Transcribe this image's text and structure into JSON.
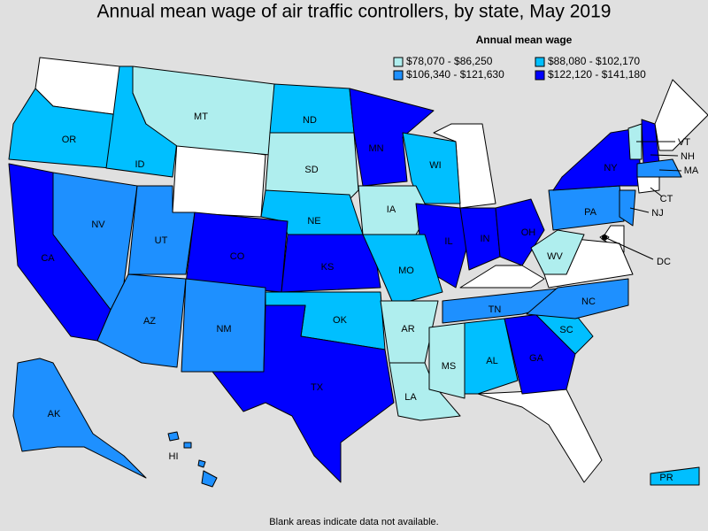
{
  "title": "Annual mean wage of air traffic controllers, by state, May 2019",
  "legend": {
    "title": "Annual mean wage",
    "items": [
      {
        "label": "$78,070 - $86,250",
        "color": "#afeeee"
      },
      {
        "label": "$88,080 - $102,170",
        "color": "#00bfff"
      },
      {
        "label": "$106,340 - $121,630",
        "color": "#1e90ff"
      },
      {
        "label": "$122,120 - $141,180",
        "color": "#0000ff"
      }
    ]
  },
  "states": [
    {
      "label": "OR",
      "class": 1
    },
    {
      "label": "ID",
      "class": 1
    },
    {
      "label": "MT",
      "class": 0
    },
    {
      "label": "ND",
      "class": 1
    },
    {
      "label": "SD",
      "class": 0
    },
    {
      "label": "NE",
      "class": 1
    },
    {
      "label": "MN",
      "class": 3
    },
    {
      "label": "WI",
      "class": 1
    },
    {
      "label": "IA",
      "class": 0
    },
    {
      "label": "IL",
      "class": 3
    },
    {
      "label": "IN",
      "class": 3
    },
    {
      "label": "OH",
      "class": 3
    },
    {
      "label": "PA",
      "class": 2
    },
    {
      "label": "NY",
      "class": 3
    },
    {
      "label": "VT",
      "class": 0
    },
    {
      "label": "NH",
      "class": 3
    },
    {
      "label": "MA",
      "class": 2
    },
    {
      "label": "CT",
      "class": null
    },
    {
      "label": "NJ",
      "class": 2
    },
    {
      "label": "DC",
      "class": null
    },
    {
      "label": "WV",
      "class": 0
    },
    {
      "label": "NV",
      "class": 2
    },
    {
      "label": "CA",
      "class": 3
    },
    {
      "label": "UT",
      "class": 2
    },
    {
      "label": "CO",
      "class": 3
    },
    {
      "label": "KS",
      "class": 3
    },
    {
      "label": "MO",
      "class": 1
    },
    {
      "label": "AZ",
      "class": 2
    },
    {
      "label": "NM",
      "class": 2
    },
    {
      "label": "OK",
      "class": 1
    },
    {
      "label": "TX",
      "class": 3
    },
    {
      "label": "AR",
      "class": 0
    },
    {
      "label": "LA",
      "class": 0
    },
    {
      "label": "MS",
      "class": 0
    },
    {
      "label": "AL",
      "class": 1
    },
    {
      "label": "TN",
      "class": 2
    },
    {
      "label": "GA",
      "class": 3
    },
    {
      "label": "SC",
      "class": 1
    },
    {
      "label": "NC",
      "class": 2
    },
    {
      "label": "AK",
      "class": 2
    },
    {
      "label": "HI",
      "class": 2
    },
    {
      "label": "PR",
      "class": 1
    }
  ],
  "footnote": "Blank areas indicate data not available."
}
